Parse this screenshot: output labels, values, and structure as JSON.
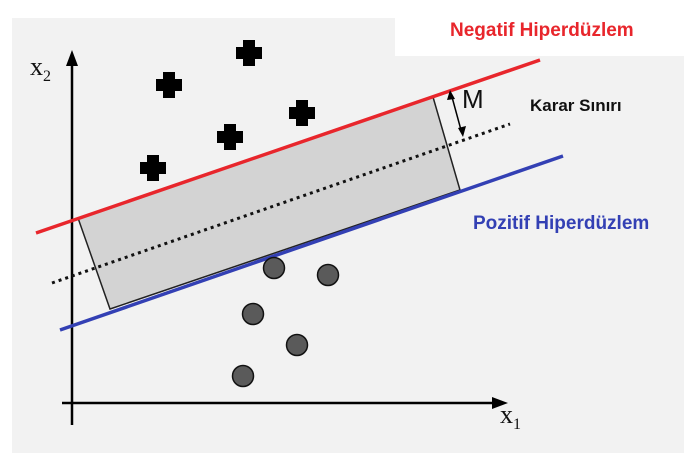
{
  "labels": {
    "negative_hyperplane": "Negatif Hiperdüzlem",
    "decision_boundary": "Karar Sınırı",
    "positive_hyperplane": "Pozitif Hiperdüzlem",
    "margin": "M",
    "x1_base": "x",
    "x1_sub": "1",
    "x2_base": "x",
    "x2_sub": "2"
  },
  "colors": {
    "negative_line": "#e8262c",
    "positive_line": "#3340b4",
    "margin_band": "#d3d3d3",
    "plot_background": "#f2f2f2"
  }
}
